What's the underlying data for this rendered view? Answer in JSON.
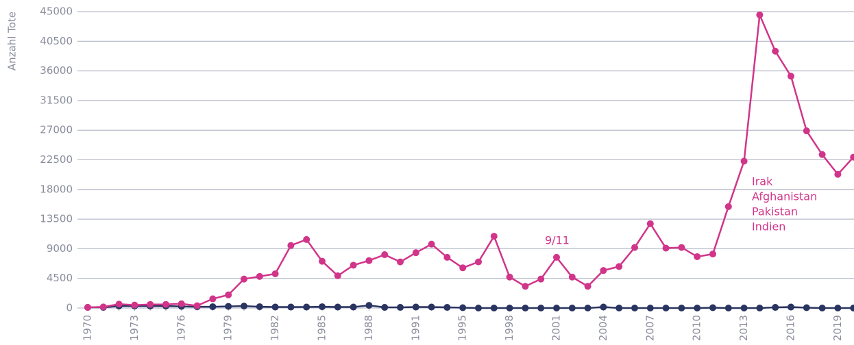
{
  "chart_data": {
    "type": "line",
    "y_label": "Anzahl Tote",
    "categories": [
      "1970",
      null,
      null,
      "1973",
      null,
      null,
      "1976",
      null,
      null,
      "1979",
      null,
      null,
      "1982",
      null,
      null,
      "1985",
      null,
      null,
      "1988",
      null,
      null,
      "1991",
      null,
      null,
      "1995",
      null,
      null,
      "1998",
      null,
      null,
      "2001",
      null,
      null,
      "2004",
      null,
      null,
      "2007",
      null,
      null,
      "2010",
      null,
      null,
      "2013",
      null,
      null,
      "2016",
      null,
      null,
      "2019",
      null
    ],
    "series": [
      {
        "color": "#d1358a",
        "values": [
          100,
          170,
          600,
          450,
          550,
          550,
          650,
          350,
          1400,
          2000,
          4400,
          4800,
          5200,
          9500,
          10400,
          7100,
          4900,
          6500,
          7200,
          8100,
          7000,
          8400,
          9700,
          7700,
          6100,
          7000,
          10900,
          4700,
          3300,
          4400,
          7700,
          4700,
          3300,
          5700,
          6300,
          9200,
          12800,
          9100,
          9200,
          7800,
          8200,
          15400,
          22300,
          44500,
          39000,
          35200,
          26900,
          23300,
          20300,
          22900
        ]
      },
      {
        "color": "#2a3461",
        "values": [
          100,
          100,
          300,
          300,
          300,
          300,
          250,
          200,
          200,
          250,
          300,
          200,
          150,
          150,
          150,
          200,
          150,
          150,
          400,
          100,
          100,
          150,
          150,
          100,
          50,
          0,
          0,
          0,
          0,
          0,
          0,
          0,
          0,
          150,
          0,
          0,
          0,
          0,
          0,
          0,
          50,
          0,
          0,
          0,
          100,
          150,
          50,
          0,
          0,
          0
        ]
      }
    ],
    "annotations": [
      {
        "text": "9/11"
      },
      {
        "lines": [
          "Irak",
          "Afghanistan",
          "Pakistan",
          "Indien"
        ]
      }
    ],
    "ylim": [
      0,
      45000
    ],
    "yticks": [
      0,
      4500,
      9000,
      13500,
      18000,
      22500,
      27000,
      31500,
      36000,
      40500,
      45000
    ],
    "grid": true
  }
}
